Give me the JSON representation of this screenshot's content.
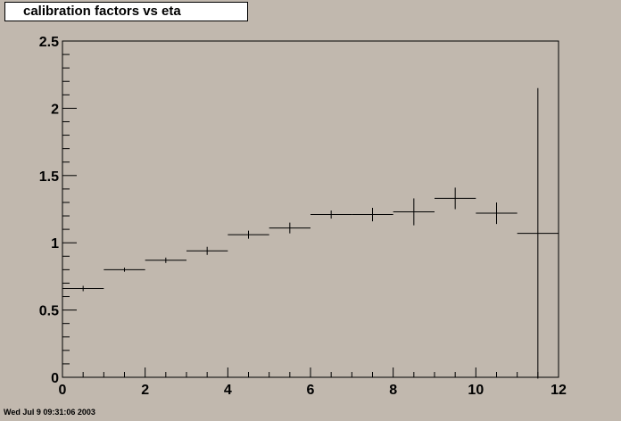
{
  "chart_data": {
    "type": "scatter",
    "title": "calibration factors vs eta",
    "xlabel": "",
    "ylabel": "",
    "xlim": [
      0,
      12
    ],
    "ylim": [
      0,
      2.5
    ],
    "x_ticks": [
      "0",
      "2",
      "4",
      "6",
      "8",
      "10",
      "12"
    ],
    "y_ticks": [
      "0",
      "0.5",
      "1",
      "1.5",
      "2",
      "2.5"
    ],
    "grid": false,
    "legend": "none",
    "series": [
      {
        "x": [
          0.5,
          1.5,
          2.5,
          3.5,
          4.5,
          5.5,
          6.5,
          7.5,
          8.5,
          9.5,
          10.5,
          11.5
        ],
        "x_err": [
          0.5,
          0.5,
          0.5,
          0.5,
          0.5,
          0.5,
          0.5,
          0.5,
          0.5,
          0.5,
          0.5,
          0.5
        ],
        "y": [
          0.66,
          0.8,
          0.87,
          0.94,
          1.06,
          1.11,
          1.21,
          1.21,
          1.23,
          1.33,
          1.22,
          1.07
        ],
        "y_err": [
          0.02,
          0.015,
          0.02,
          0.03,
          0.03,
          0.04,
          0.03,
          0.05,
          0.1,
          0.08,
          0.08,
          1.08
        ]
      }
    ]
  },
  "footer": {
    "date": "Wed Jul  9 09:31:06 2003"
  },
  "colors": {
    "background": "#c1b8ae",
    "frame": "#000000",
    "marker": "#000000"
  }
}
